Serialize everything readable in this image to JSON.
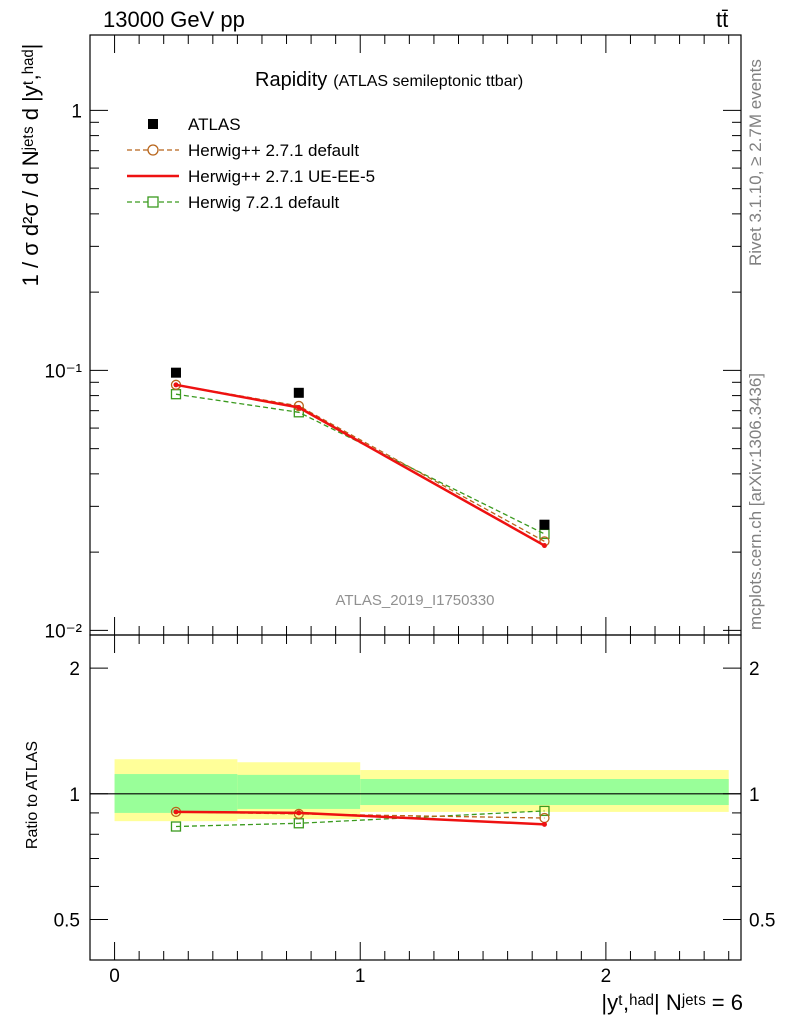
{
  "header": {
    "energy_label": "13000 GeV pp",
    "process_label": "tt̄"
  },
  "side": {
    "rivet_label": "Rivet 3.1.10, ≥ 2.7M events",
    "site_label": "mcplots.cern.ch [arXiv:1306.3436]"
  },
  "chart_data": [
    {
      "type": "scatter",
      "panel": "main",
      "title": "Rapidity",
      "subtitle": "(ATLAS semileptonic ttbar)",
      "watermark": "ATLAS_2019_I1750330",
      "ylabel": "1 / σ d²σ / d Nʲᵉᵗˢ d |yᵗ,ʰᵃᵈ|",
      "xlim": [
        -0.1,
        2.55
      ],
      "ylim": [
        0.0096,
        1.95
      ],
      "yscale": "log",
      "yticks": [
        {
          "value": 1,
          "label": "1"
        },
        {
          "value": 0.1,
          "label": "10⁻¹"
        },
        {
          "value": 0.01,
          "label": "10⁻²"
        }
      ],
      "x_bins": [
        0.25,
        0.75,
        1.75
      ],
      "legend_position": "top-left",
      "series": [
        {
          "name": "ATLAS",
          "style": "data",
          "color": "#000000",
          "x": [
            0.25,
            0.75,
            1.75
          ],
          "y": [
            0.098,
            0.082,
            0.0255
          ]
        },
        {
          "name": "Herwig++ 2.7.1 default",
          "style": "dashed-circle",
          "color": "#b8651b",
          "x": [
            0.25,
            0.75,
            1.75
          ],
          "y": [
            0.088,
            0.073,
            0.022
          ]
        },
        {
          "name": "Herwig++ 2.7.1 UE-EE-5",
          "style": "solid",
          "color": "#ee1111",
          "x": [
            0.25,
            0.75,
            1.75
          ],
          "y": [
            0.088,
            0.072,
            0.0212
          ]
        },
        {
          "name": "Herwig 7.2.1 default",
          "style": "dashed-square",
          "color": "#3a9a1e",
          "x": [
            0.25,
            0.75,
            1.75
          ],
          "y": [
            0.081,
            0.069,
            0.0235
          ]
        }
      ]
    },
    {
      "type": "line",
      "panel": "ratio",
      "ylabel": "Ratio to ATLAS",
      "xlabel": "|yᵗ,ʰᵃᵈ| Nʲᵉᵗˢ = 6",
      "xlim": [
        -0.1,
        2.55
      ],
      "ylim": [
        0.4,
        2.4
      ],
      "yscale": "log",
      "xticks": [
        {
          "value": 0,
          "label": "0"
        },
        {
          "value": 1,
          "label": "1"
        },
        {
          "value": 2,
          "label": "2"
        }
      ],
      "yticks": [
        {
          "value": 2,
          "label": "2"
        },
        {
          "value": 1,
          "label": "1"
        },
        {
          "value": 0.5,
          "label": "0.5"
        }
      ],
      "bands": [
        {
          "x": [
            0,
            0.5
          ],
          "stat": [
            0.9,
            1.115
          ],
          "total": [
            0.86,
            1.21
          ]
        },
        {
          "x": [
            0.5,
            1
          ],
          "stat": [
            0.92,
            1.11
          ],
          "total": [
            0.87,
            1.19
          ]
        },
        {
          "x": [
            1,
            2.5
          ],
          "stat": [
            0.94,
            1.085
          ],
          "total": [
            0.905,
            1.14
          ]
        }
      ],
      "series": [
        {
          "name": "Herwig++ 2.7.1 default",
          "style": "dashed-circle",
          "color": "#b8651b",
          "x": [
            0.25,
            0.75,
            1.75
          ],
          "y": [
            0.905,
            0.895,
            0.875
          ]
        },
        {
          "name": "Herwig++ 2.7.1 UE-EE-5",
          "style": "solid",
          "color": "#ee1111",
          "x": [
            0.25,
            0.75,
            1.75
          ],
          "y": [
            0.905,
            0.9,
            0.845
          ]
        },
        {
          "name": "Herwig 7.2.1 default",
          "style": "dashed-square",
          "color": "#3a9a1e",
          "x": [
            0.25,
            0.75,
            1.75
          ],
          "y": [
            0.835,
            0.85,
            0.91
          ]
        }
      ]
    }
  ]
}
